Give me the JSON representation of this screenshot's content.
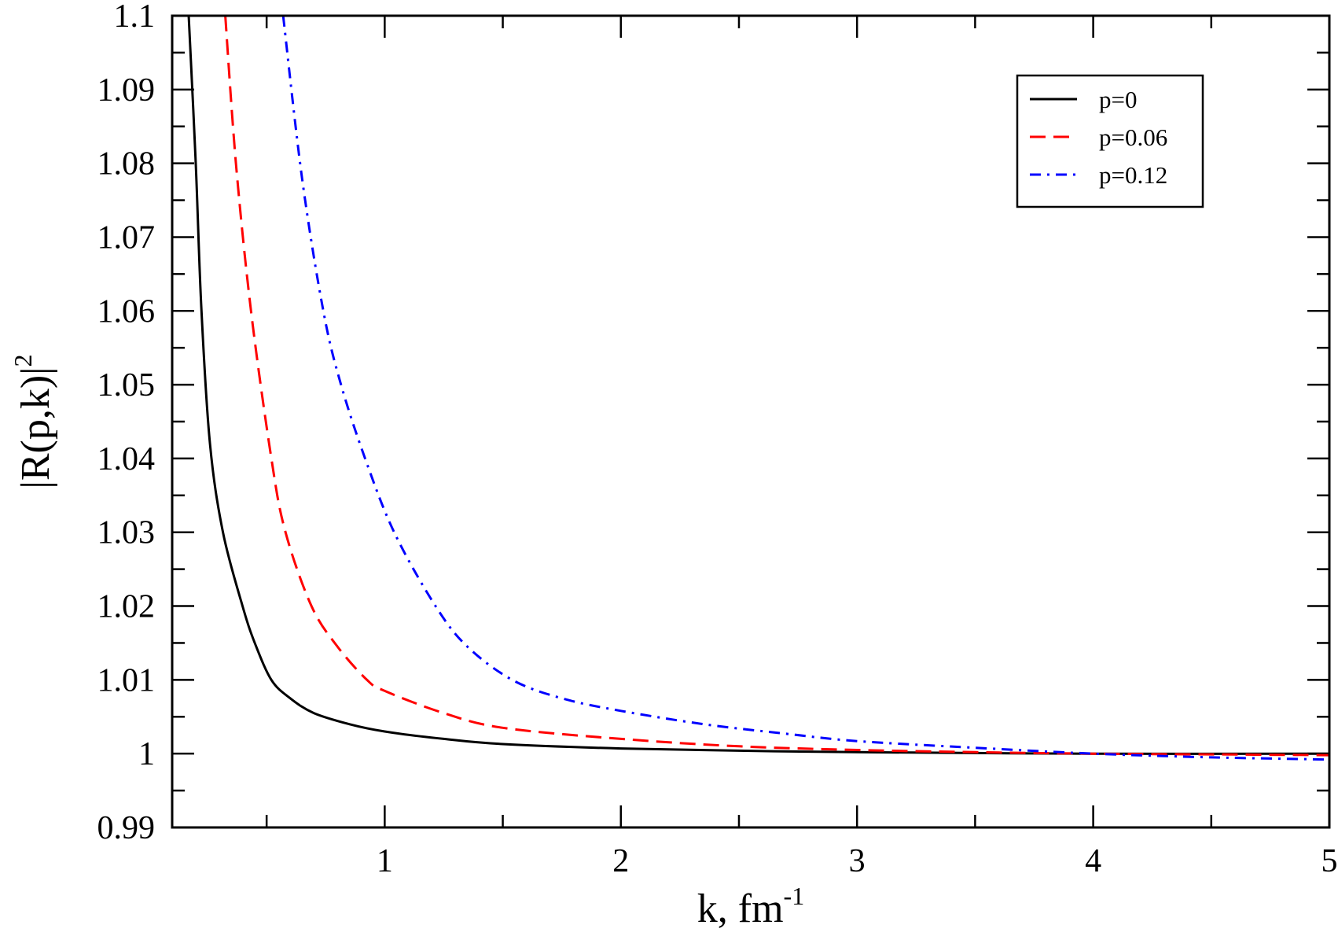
{
  "chart_data": {
    "type": "line",
    "title": "",
    "xlabel": "k, fm",
    "xlabel_superscript": "-1",
    "ylabel": "|R(p,k)|",
    "ylabel_superscript": "2",
    "xlim": [
      0.1,
      5
    ],
    "ylim": [
      0.99,
      1.1
    ],
    "grid": false,
    "legend_position": "top-right",
    "x_ticks": [
      "1",
      "2",
      "3",
      "4",
      "5"
    ],
    "x_tick_values": [
      1,
      2,
      3,
      4,
      5
    ],
    "y_ticks": [
      "0.99",
      "1",
      "1.01",
      "1.02",
      "1.03",
      "1.04",
      "1.05",
      "1.06",
      "1.07",
      "1.08",
      "1.09",
      "1.1"
    ],
    "y_tick_values": [
      0.99,
      1.0,
      1.01,
      1.02,
      1.03,
      1.04,
      1.05,
      1.06,
      1.07,
      1.08,
      1.09,
      1.1
    ],
    "series": [
      {
        "name": "p=0",
        "color": "#000000",
        "style": "solid",
        "x": [
          0.17,
          0.2,
          0.224,
          0.26,
          0.315,
          0.398,
          0.45,
          0.52,
          0.6,
          0.7,
          0.85,
          1.0,
          1.25,
          1.5,
          2.0,
          2.5,
          3.0,
          4.0,
          5.0
        ],
        "y": [
          1.1,
          1.08,
          1.06,
          1.042,
          1.03,
          1.02,
          1.015,
          1.01,
          1.0075,
          1.0055,
          1.004,
          1.003,
          1.002,
          1.0013,
          1.0007,
          1.0004,
          1.0002,
          1.0,
          1.0
        ]
      },
      {
        "name": "p=0.06",
        "color": "#ff0000",
        "style": "dashed",
        "x": [
          0.325,
          0.37,
          0.434,
          0.52,
          0.58,
          0.69,
          0.8,
          0.925,
          1.0,
          1.25,
          1.5,
          2.0,
          2.5,
          3.0,
          3.5,
          4.0,
          4.5,
          5.0
        ],
        "y": [
          1.1,
          1.08,
          1.06,
          1.04,
          1.03,
          1.02,
          1.0145,
          1.01,
          1.0085,
          1.0055,
          1.0035,
          1.002,
          1.001,
          1.0005,
          1.0002,
          1.0,
          0.9999,
          0.9998
        ]
      },
      {
        "name": "p=0.12",
        "color": "#0000ff",
        "style": "dash-dot",
        "x": [
          0.57,
          0.65,
          0.74,
          0.815,
          0.917,
          1.04,
          1.215,
          1.35,
          1.54,
          1.75,
          2.0,
          2.35,
          2.7,
          3.0,
          3.5,
          4.0,
          4.5,
          5.0
        ],
        "y": [
          1.1,
          1.078,
          1.06,
          1.05,
          1.04,
          1.03,
          1.02,
          1.0145,
          1.01,
          1.0075,
          1.0058,
          1.004,
          1.0027,
          1.0017,
          1.0008,
          1.0,
          0.9995,
          0.9992
        ]
      }
    ]
  }
}
